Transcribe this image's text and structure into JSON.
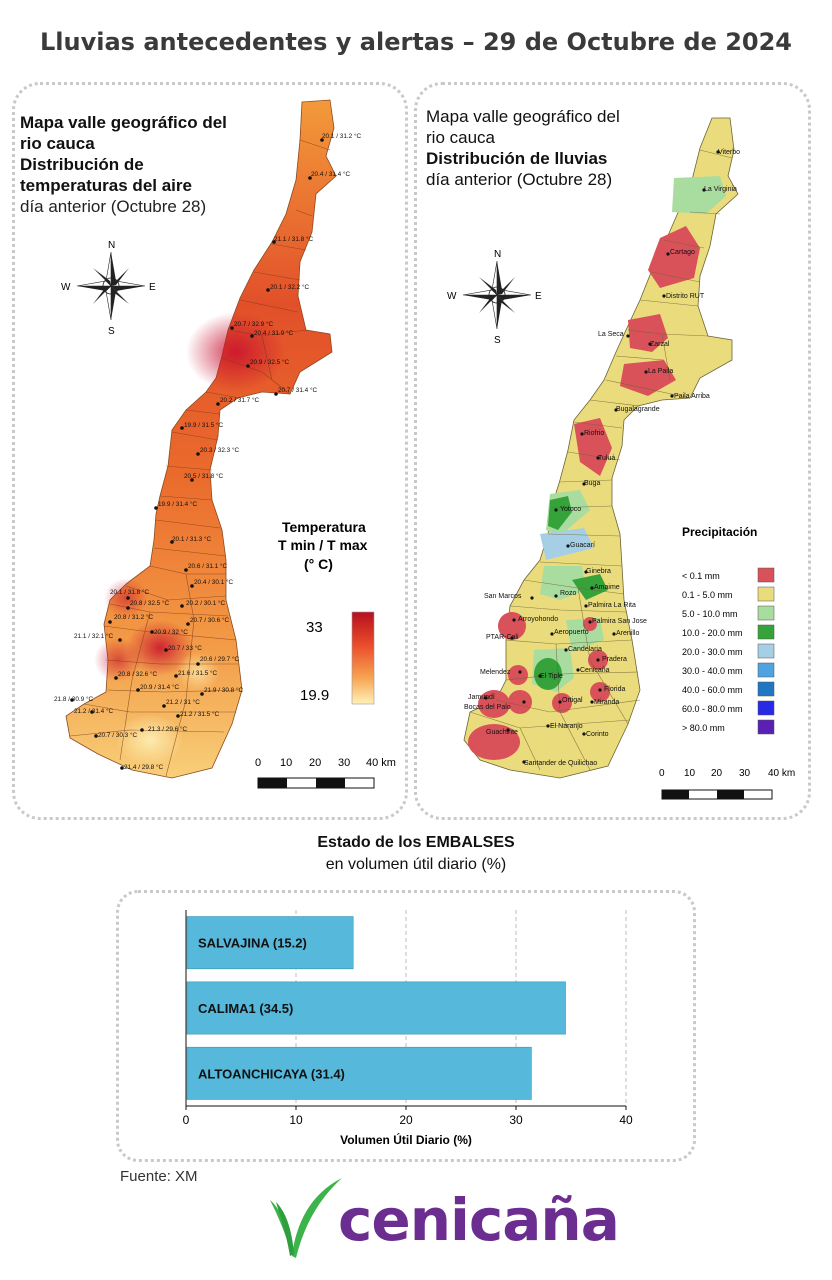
{
  "header": {
    "title": "Lluvias antecedentes y alertas – 29 de Octubre de 2024"
  },
  "temp_map": {
    "title_line1": "Mapa valle geográfico del",
    "title_line2": "rio cauca",
    "title_line3": "Distribución de",
    "title_line4": "temperaturas del aire",
    "title_line5": "día anterior (Octubre 28)",
    "legend_title": "Temperatura",
    "legend_sub": "T min / T max",
    "legend_unit": "(° C)",
    "legend_max": "33",
    "legend_min": "19.9",
    "colors": {
      "hot": "#c8102e",
      "mid": "#f07a2a",
      "cool": "#fde9a0"
    },
    "stations": [
      "20.1 / 31.2 °C",
      "20.4 / 31.4 °C",
      "21.1 / 31.8 °C",
      "20.1 / 32.2 °C",
      "20.7 / 32.9 °C",
      "20.4 / 31.9 °C",
      "20.9 / 32.5 °C",
      "20.7 / 31.4 °C",
      "20.2 / 31.7 °C",
      "19.9 / 31.5 °C",
      "20.3 / 32.3 °C",
      "20.5 / 31.8 °C",
      "19.9 / 31.4 °C",
      "20.1 / 31.3 °C",
      "20.6 / 31.1 °C",
      "20.4 / 30.1 °C",
      "20.1 / 31.8 °C",
      "20.8 / 32.5 °C",
      "20.2 / 30.1 °C",
      "20.8 / 31.2 °C",
      "20.7 / 30.6 °C",
      "20.9 / 32 °C",
      "21.1 / 32.1 °C",
      "20.7 / 33 °C",
      "20.6 / 29.7 °C",
      "20.8 / 32.6 °C",
      "21.6 / 31.5 °C",
      "20.9 / 31.4 °C",
      "21.9 / 30.8 °C",
      "21.8 / 30.9 °C",
      "21.2 / 31 °C",
      "21.2 / 31.4 °C",
      "21.2 / 31.5 °C",
      "20.7 / 30.3 °C",
      "21.3 / 29.6 °C",
      "21.4 / 29.8 °C"
    ],
    "scale_labels": [
      "0",
      "10",
      "20",
      "30",
      "40 km"
    ]
  },
  "rain_map": {
    "title_line1": "Mapa valle geográfico del",
    "title_line2": "rio cauca",
    "title_line3": "Distribución de lluvias",
    "title_line4": "día anterior (Octubre 28)",
    "legend_title": "Precipitación",
    "legend": [
      {
        "label": "< 0.1 mm",
        "color": "#d9525a"
      },
      {
        "label": "0.1 - 5.0 mm",
        "color": "#eadc7c"
      },
      {
        "label": "5.0 - 10.0 mm",
        "color": "#a9dc9f"
      },
      {
        "label": "10.0 - 20.0 mm",
        "color": "#36a33a"
      },
      {
        "label": "20.0 - 30.0 mm",
        "color": "#a6cfe6"
      },
      {
        "label": "30.0 - 40.0 mm",
        "color": "#4ea3e0"
      },
      {
        "label": "40.0 - 60.0 mm",
        "color": "#1f77c4"
      },
      {
        "label": "60.0 - 80.0 mm",
        "color": "#2929e8"
      },
      {
        "label": "> 80.0 mm",
        "color": "#5b1fb5"
      }
    ],
    "places": [
      "Viterbo",
      "La Virginia",
      "Cartago",
      "Distrito RUT",
      "La Seca",
      "Zarzal",
      "La Paila",
      "Paila Arriba",
      "Bugalagrande",
      "Riofrio",
      "Tuluá",
      "Buga",
      "Yotoco",
      "Guacarí",
      "Ginebra",
      "Amaime",
      "San Marcos",
      "Rozo",
      "Palmira La Rita",
      "Arroyohondo",
      "Palmira San Jose",
      "PTAR-Cali",
      "Aeropuerto",
      "Arenillo",
      "Candelaria",
      "Pradera",
      "Cenicaña",
      "Melendez",
      "El Tiple",
      "Florida",
      "Jamundí",
      "Bocas del Palo",
      "Ortigal",
      "Miranda",
      "El Naranjo",
      "Guachinte",
      "Corinto",
      "Santander de Quilichao"
    ],
    "scale_labels": [
      "0",
      "10",
      "20",
      "30",
      "40 km"
    ]
  },
  "compass": {
    "n": "N",
    "s": "S",
    "e": "E",
    "w": "W"
  },
  "reservoirs": {
    "title": "Estado de los EMBALSES",
    "subtitle": "en volumen útil diario (%)",
    "source": "Fuente: XM"
  },
  "chart_data": {
    "type": "bar",
    "orientation": "horizontal",
    "categories": [
      "SALVAJINA (15.2)",
      "CALIMA1 (34.5)",
      "ALTOANCHICAYA (31.4)"
    ],
    "values": [
      15.2,
      34.5,
      31.4
    ],
    "xlabel": "Volumen Útil Diario (%)",
    "ylabel": "",
    "xlim": [
      0,
      40
    ],
    "xticks": [
      0,
      10,
      20,
      30,
      40
    ],
    "grid": true,
    "bar_color": "#56b9db"
  },
  "logo": {
    "text": "cenicaña",
    "colors": {
      "leaf": "#3cb44b",
      "text": "#6b2d8f"
    }
  }
}
